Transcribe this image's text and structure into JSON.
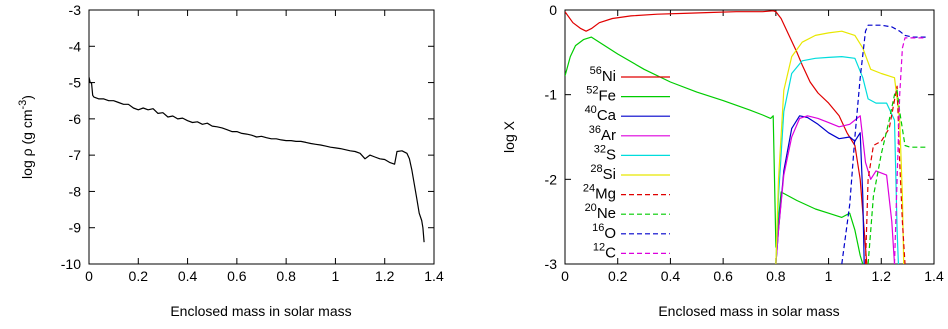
{
  "chart_data": [
    {
      "type": "line",
      "xlabel": "Enclosed mass in solar mass",
      "ylabel_base": "log ρ (g cm",
      "ylabel_sup": "-3",
      "ylabel_tail": ")",
      "xlim": [
        0,
        1.4
      ],
      "ylim": [
        -10,
        -3
      ],
      "x_ticks": [
        0,
        0.2,
        0.4,
        0.6,
        0.8,
        1,
        1.2,
        1.4
      ],
      "x_tick_labels": [
        "0",
        "0.2",
        "0.4",
        "0.6",
        "0.8",
        "1",
        "1.2",
        "1.4"
      ],
      "y_ticks": [
        -10,
        -9,
        -8,
        -7,
        -6,
        -5,
        -4,
        -3
      ],
      "y_tick_labels": [
        "-10",
        "-9",
        "-8",
        "-7",
        "-6",
        "-5",
        "-4",
        "-3"
      ],
      "grid": false,
      "series": [
        {
          "color": "#000000",
          "dashed": false,
          "points": [
            [
              0,
              -4.85
            ],
            [
              0.005,
              -5.0
            ],
            [
              0.01,
              -5.0
            ],
            [
              0.015,
              -5.35
            ],
            [
              0.02,
              -5.4
            ],
            [
              0.04,
              -5.45
            ],
            [
              0.06,
              -5.45
            ],
            [
              0.08,
              -5.5
            ],
            [
              0.1,
              -5.5
            ],
            [
              0.12,
              -5.55
            ],
            [
              0.14,
              -5.6
            ],
            [
              0.16,
              -5.6
            ],
            [
              0.18,
              -5.7
            ],
            [
              0.2,
              -5.75
            ],
            [
              0.22,
              -5.7
            ],
            [
              0.24,
              -5.75
            ],
            [
              0.26,
              -5.72
            ],
            [
              0.28,
              -5.85
            ],
            [
              0.3,
              -5.83
            ],
            [
              0.32,
              -5.95
            ],
            [
              0.34,
              -5.92
            ],
            [
              0.36,
              -6.0
            ],
            [
              0.38,
              -5.98
            ],
            [
              0.4,
              -6.05
            ],
            [
              0.42,
              -6.1
            ],
            [
              0.44,
              -6.08
            ],
            [
              0.46,
              -6.15
            ],
            [
              0.48,
              -6.12
            ],
            [
              0.5,
              -6.2
            ],
            [
              0.52,
              -6.22
            ],
            [
              0.54,
              -6.25
            ],
            [
              0.56,
              -6.3
            ],
            [
              0.58,
              -6.35
            ],
            [
              0.6,
              -6.35
            ],
            [
              0.62,
              -6.4
            ],
            [
              0.64,
              -6.42
            ],
            [
              0.66,
              -6.45
            ],
            [
              0.68,
              -6.5
            ],
            [
              0.7,
              -6.48
            ],
            [
              0.72,
              -6.52
            ],
            [
              0.74,
              -6.55
            ],
            [
              0.76,
              -6.55
            ],
            [
              0.78,
              -6.58
            ],
            [
              0.8,
              -6.6
            ],
            [
              0.82,
              -6.6
            ],
            [
              0.84,
              -6.62
            ],
            [
              0.86,
              -6.62
            ],
            [
              0.88,
              -6.65
            ],
            [
              0.9,
              -6.68
            ],
            [
              0.92,
              -6.7
            ],
            [
              0.94,
              -6.72
            ],
            [
              0.96,
              -6.75
            ],
            [
              0.98,
              -6.78
            ],
            [
              1.0,
              -6.8
            ],
            [
              1.02,
              -6.82
            ],
            [
              1.04,
              -6.85
            ],
            [
              1.06,
              -6.88
            ],
            [
              1.08,
              -6.9
            ],
            [
              1.1,
              -6.95
            ],
            [
              1.12,
              -7.1
            ],
            [
              1.14,
              -7.0
            ],
            [
              1.16,
              -7.05
            ],
            [
              1.18,
              -7.1
            ],
            [
              1.2,
              -7.12
            ],
            [
              1.22,
              -7.2
            ],
            [
              1.24,
              -7.25
            ],
            [
              1.25,
              -6.9
            ],
            [
              1.27,
              -6.88
            ],
            [
              1.29,
              -6.95
            ],
            [
              1.3,
              -7.1
            ],
            [
              1.31,
              -7.4
            ],
            [
              1.32,
              -7.8
            ],
            [
              1.33,
              -8.2
            ],
            [
              1.34,
              -8.6
            ],
            [
              1.35,
              -8.8
            ],
            [
              1.355,
              -9.0
            ],
            [
              1.36,
              -9.4
            ]
          ]
        }
      ]
    },
    {
      "type": "line",
      "xlabel": "Enclosed mass in solar mass",
      "ylabel": "log X",
      "xlim": [
        0,
        1.4
      ],
      "ylim": [
        -3,
        0
      ],
      "x_ticks": [
        0,
        0.2,
        0.4,
        0.6,
        0.8,
        1,
        1.2,
        1.4
      ],
      "x_tick_labels": [
        "0",
        "0.2",
        "0.4",
        "0.6",
        "0.8",
        "1",
        "1.2",
        "1.4"
      ],
      "y_ticks": [
        -3,
        -2,
        -1,
        0
      ],
      "y_tick_labels": [
        "-3",
        "-2",
        "-1",
        "0"
      ],
      "grid": false,
      "legend_placement": "left",
      "series": [
        {
          "sup": "56",
          "el": "Ni",
          "color": "#e00000",
          "dashed": false,
          "points": [
            [
              0,
              -0.02
            ],
            [
              0.03,
              -0.15
            ],
            [
              0.06,
              -0.22
            ],
            [
              0.08,
              -0.25
            ],
            [
              0.1,
              -0.22
            ],
            [
              0.13,
              -0.15
            ],
            [
              0.18,
              -0.1
            ],
            [
              0.25,
              -0.07
            ],
            [
              0.35,
              -0.05
            ],
            [
              0.45,
              -0.04
            ],
            [
              0.55,
              -0.03
            ],
            [
              0.65,
              -0.02
            ],
            [
              0.75,
              -0.02
            ],
            [
              0.79,
              -0.01
            ],
            [
              0.8,
              -0.02
            ],
            [
              0.82,
              -0.1
            ],
            [
              0.85,
              -0.3
            ],
            [
              0.88,
              -0.5
            ],
            [
              0.9,
              -0.65
            ],
            [
              0.93,
              -0.85
            ],
            [
              0.96,
              -0.98
            ],
            [
              1.0,
              -1.1
            ],
            [
              1.04,
              -1.25
            ],
            [
              1.07,
              -1.45
            ],
            [
              1.1,
              -1.6
            ],
            [
              1.12,
              -2.0
            ],
            [
              1.14,
              -2.8
            ],
            [
              1.145,
              -3.0
            ]
          ]
        },
        {
          "sup": "52",
          "el": "Fe",
          "color": "#00cc00",
          "dashed": false,
          "points": [
            [
              0,
              -0.78
            ],
            [
              0.02,
              -0.55
            ],
            [
              0.04,
              -0.42
            ],
            [
              0.07,
              -0.35
            ],
            [
              0.1,
              -0.32
            ],
            [
              0.14,
              -0.4
            ],
            [
              0.2,
              -0.52
            ],
            [
              0.3,
              -0.7
            ],
            [
              0.4,
              -0.85
            ],
            [
              0.5,
              -0.97
            ],
            [
              0.6,
              -1.07
            ],
            [
              0.7,
              -1.18
            ],
            [
              0.75,
              -1.24
            ],
            [
              0.78,
              -1.28
            ],
            [
              0.79,
              -1.25
            ],
            [
              0.8,
              -2.8
            ],
            [
              0.82,
              -2.15
            ],
            [
              0.88,
              -2.25
            ],
            [
              0.95,
              -2.35
            ],
            [
              1.0,
              -2.4
            ],
            [
              1.05,
              -2.45
            ],
            [
              1.08,
              -2.4
            ],
            [
              1.1,
              -2.6
            ],
            [
              1.12,
              -2.9
            ],
            [
              1.13,
              -3.0
            ]
          ]
        },
        {
          "sup": "40",
          "el": "Ca",
          "color": "#0000cc",
          "dashed": false,
          "points": [
            [
              0.8,
              -3.0
            ],
            [
              0.81,
              -2.6
            ],
            [
              0.83,
              -1.9
            ],
            [
              0.86,
              -1.4
            ],
            [
              0.89,
              -1.25
            ],
            [
              0.92,
              -1.27
            ],
            [
              0.96,
              -1.35
            ],
            [
              1.0,
              -1.45
            ],
            [
              1.04,
              -1.52
            ],
            [
              1.08,
              -1.5
            ],
            [
              1.1,
              -1.55
            ],
            [
              1.12,
              -1.45
            ],
            [
              1.13,
              -2.2
            ],
            [
              1.135,
              -3.0
            ]
          ]
        },
        {
          "sup": "36",
          "el": "Ar",
          "color": "#dd00dd",
          "dashed": false,
          "points": [
            [
              0.8,
              -3.0
            ],
            [
              0.81,
              -2.6
            ],
            [
              0.83,
              -1.95
            ],
            [
              0.86,
              -1.5
            ],
            [
              0.89,
              -1.28
            ],
            [
              0.92,
              -1.25
            ],
            [
              0.96,
              -1.28
            ],
            [
              1.0,
              -1.33
            ],
            [
              1.04,
              -1.38
            ],
            [
              1.08,
              -1.35
            ],
            [
              1.1,
              -1.3
            ],
            [
              1.12,
              -1.25
            ],
            [
              1.14,
              -1.8
            ],
            [
              1.16,
              -2.0
            ],
            [
              1.18,
              -1.9
            ],
            [
              1.22,
              -1.95
            ],
            [
              1.24,
              -2.5
            ],
            [
              1.25,
              -3.0
            ]
          ]
        },
        {
          "sup": "32",
          "el": "S",
          "color": "#00dddd",
          "dashed": false,
          "points": [
            [
              0.8,
              -3.0
            ],
            [
              0.81,
              -2.2
            ],
            [
              0.83,
              -1.2
            ],
            [
              0.86,
              -0.75
            ],
            [
              0.9,
              -0.6
            ],
            [
              0.95,
              -0.57
            ],
            [
              1.0,
              -0.56
            ],
            [
              1.05,
              -0.55
            ],
            [
              1.1,
              -0.57
            ],
            [
              1.13,
              -0.8
            ],
            [
              1.15,
              -1.05
            ],
            [
              1.18,
              -1.1
            ],
            [
              1.22,
              -1.1
            ],
            [
              1.25,
              -1.3
            ],
            [
              1.26,
              -2.6
            ],
            [
              1.265,
              -3.0
            ]
          ]
        },
        {
          "sup": "28",
          "el": "Si",
          "color": "#e8e800",
          "dashed": false,
          "points": [
            [
              0.8,
              -3.0
            ],
            [
              0.81,
              -2.0
            ],
            [
              0.83,
              -0.95
            ],
            [
              0.86,
              -0.55
            ],
            [
              0.9,
              -0.38
            ],
            [
              0.95,
              -0.3
            ],
            [
              1.0,
              -0.27
            ],
            [
              1.05,
              -0.25
            ],
            [
              1.1,
              -0.3
            ],
            [
              1.13,
              -0.45
            ],
            [
              1.16,
              -0.7
            ],
            [
              1.2,
              -0.75
            ],
            [
              1.25,
              -0.8
            ],
            [
              1.27,
              -1.3
            ],
            [
              1.28,
              -2.2
            ],
            [
              1.285,
              -3.0
            ]
          ]
        },
        {
          "sup": "24",
          "el": "Mg",
          "color": "#e00000",
          "dashed": true,
          "points": [
            [
              1.14,
              -3.0
            ],
            [
              1.15,
              -2.0
            ],
            [
              1.17,
              -1.6
            ],
            [
              1.2,
              -1.55
            ],
            [
              1.23,
              -1.4
            ],
            [
              1.26,
              -0.9
            ],
            [
              1.27,
              -1.8
            ],
            [
              1.28,
              -2.5
            ],
            [
              1.29,
              -3.0
            ]
          ]
        },
        {
          "sup": "20",
          "el": "Ne",
          "color": "#00cc00",
          "dashed": true,
          "points": [
            [
              1.15,
              -3.0
            ],
            [
              1.17,
              -2.2
            ],
            [
              1.2,
              -1.7
            ],
            [
              1.23,
              -1.3
            ],
            [
              1.25,
              -1.0
            ],
            [
              1.26,
              -0.95
            ],
            [
              1.27,
              -1.2
            ],
            [
              1.29,
              -1.6
            ],
            [
              1.31,
              -1.62
            ],
            [
              1.35,
              -1.62
            ],
            [
              1.37,
              -1.62
            ]
          ]
        },
        {
          "sup": "16",
          "el": "O",
          "color": "#0000cc",
          "dashed": true,
          "points": [
            [
              1.05,
              -3.0
            ],
            [
              1.08,
              -2.3
            ],
            [
              1.1,
              -1.5
            ],
            [
              1.12,
              -0.8
            ],
            [
              1.14,
              -0.25
            ],
            [
              1.15,
              -0.18
            ],
            [
              1.2,
              -0.18
            ],
            [
              1.24,
              -0.2
            ],
            [
              1.27,
              -0.25
            ],
            [
              1.29,
              -0.3
            ],
            [
              1.32,
              -0.32
            ],
            [
              1.37,
              -0.32
            ]
          ]
        },
        {
          "sup": "12",
          "el": "C",
          "color": "#dd00dd",
          "dashed": true,
          "points": [
            [
              1.25,
              -3.0
            ],
            [
              1.26,
              -2.0
            ],
            [
              1.27,
              -1.0
            ],
            [
              1.28,
              -0.45
            ],
            [
              1.29,
              -0.33
            ],
            [
              1.32,
              -0.33
            ],
            [
              1.37,
              -0.33
            ]
          ]
        }
      ]
    }
  ]
}
